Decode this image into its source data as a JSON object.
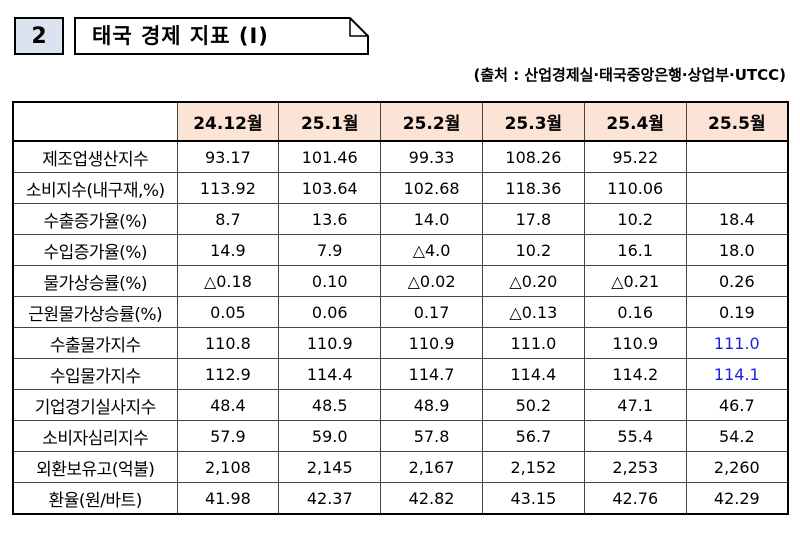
{
  "section": {
    "number": "2",
    "title": "태국 경제 지표 (Ⅰ)"
  },
  "source": "(출처 : 산업경제실·태국중앙은행·상업부·UTCC)",
  "table": {
    "columns": [
      "24.12월",
      "25.1월",
      "25.2월",
      "25.3월",
      "25.4월",
      "25.5월"
    ],
    "rows": [
      {
        "label": "제조업생산지수",
        "values": [
          "93.17",
          "101.46",
          "99.33",
          "108.26",
          "95.22",
          ""
        ]
      },
      {
        "label": "소비지수(내구재,%)",
        "values": [
          "113.92",
          "103.64",
          "102.68",
          "118.36",
          "110.06",
          ""
        ]
      },
      {
        "label": "수출증가율(%)",
        "values": [
          "8.7",
          "13.6",
          "14.0",
          "17.8",
          "10.2",
          "18.4"
        ]
      },
      {
        "label": "수입증가율(%)",
        "values": [
          "14.9",
          "7.9",
          "△4.0",
          "10.2",
          "16.1",
          "18.0"
        ]
      },
      {
        "label": "물가상승률(%)",
        "values": [
          "△0.18",
          "0.10",
          "△0.02",
          "△0.20",
          "△0.21",
          "0.26"
        ]
      },
      {
        "label": "근원물가상승률(%)",
        "values": [
          "0.05",
          "0.06",
          "0.17",
          "△0.13",
          "0.16",
          "0.19"
        ]
      },
      {
        "label": "수출물가지수",
        "values": [
          "110.8",
          "110.9",
          "110.9",
          "111.0",
          "110.9",
          "111.0"
        ],
        "highlight_last": true
      },
      {
        "label": "수입물가지수",
        "values": [
          "112.9",
          "114.4",
          "114.7",
          "114.4",
          "114.2",
          "114.1"
        ],
        "highlight_last": true
      },
      {
        "label": "기업경기실사지수",
        "values": [
          "48.4",
          "48.5",
          "48.9",
          "50.2",
          "47.1",
          "46.7"
        ]
      },
      {
        "label": "소비자심리지수",
        "values": [
          "57.9",
          "59.0",
          "57.8",
          "56.7",
          "55.4",
          "54.2"
        ]
      },
      {
        "label": "외환보유고(억불)",
        "values": [
          "2,108",
          "2,145",
          "2,167",
          "2,152",
          "2,253",
          "2,260"
        ]
      },
      {
        "label": "환율(원/바트)",
        "values": [
          "41.98",
          "42.37",
          "42.82",
          "43.15",
          "42.76",
          "42.29"
        ]
      }
    ],
    "highlight_color": "#1f1fe0",
    "header_color": "#fbe4d5"
  }
}
